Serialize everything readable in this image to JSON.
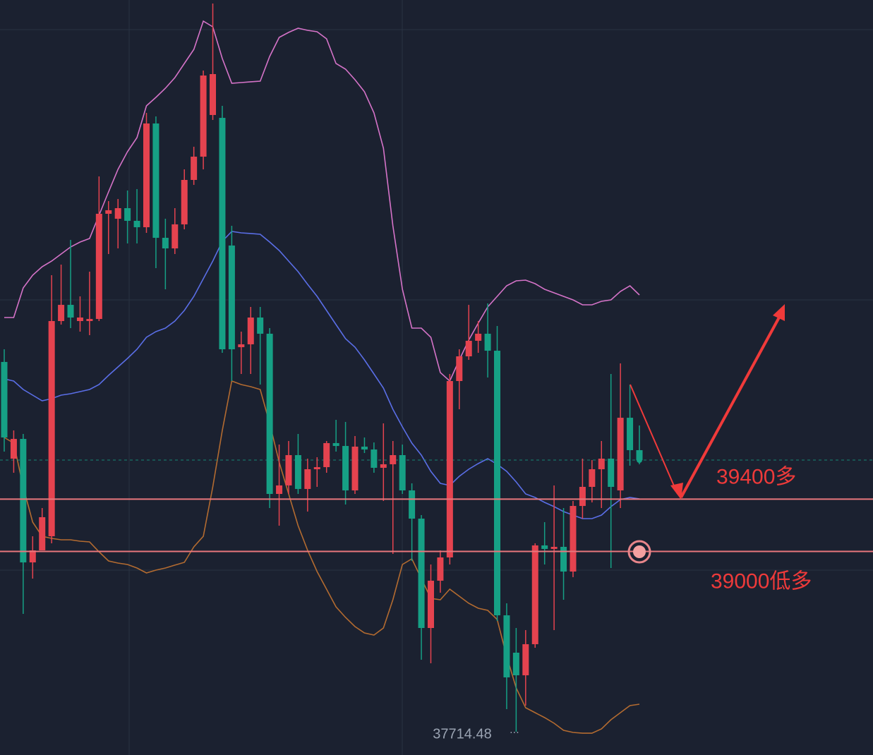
{
  "chart_data": {
    "type": "candlestick",
    "ylim": [
      37442,
      43220
    ],
    "up_color": "#e5434f",
    "down_color": "#16a085",
    "open": [
      40450,
      39710,
      39861,
      38916,
      39008,
      39116,
      40763,
      40887,
      40763,
      40763,
      40779,
      41584,
      41546,
      41627,
      41530,
      41481,
      42275,
      41400,
      41319,
      41503,
      41843,
      42021,
      42340,
      42318,
      41341,
      40563,
      40585,
      40790,
      40666,
      39440,
      39505,
      39737,
      39478,
      39629,
      39645,
      39829,
      39807,
      39467,
      39802,
      39780,
      39640,
      39667,
      39737,
      39467,
      39251,
      38414,
      38776,
      38954,
      40304,
      40493,
      40612,
      40666,
      40536,
      38511,
      38225,
      38052,
      38290,
      39046,
      39019,
      39035,
      38846,
      39348,
      39494,
      39629,
      39710,
      39467,
      40023,
      39775
    ],
    "high": [
      40547,
      39926,
      39899,
      39116,
      39332,
      41114,
      41195,
      41384,
      40952,
      41141,
      41870,
      41681,
      41697,
      41762,
      41773,
      42356,
      42329,
      41546,
      41627,
      41924,
      42097,
      42680,
      43193,
      42410,
      41492,
      40682,
      40871,
      40871,
      40709,
      39818,
      39845,
      39899,
      39710,
      39721,
      39845,
      40007,
      39991,
      39883,
      39872,
      39834,
      39980,
      39845,
      39818,
      39521,
      39278,
      38900,
      39008,
      40358,
      40547,
      40887,
      40763,
      40898,
      40725,
      38603,
      38414,
      38398,
      39062,
      39224,
      39505,
      39332,
      39386,
      39710,
      39699,
      39845,
      40358,
      40439,
      40277,
      39964
    ],
    "low": [
      39764,
      39602,
      38522,
      38792,
      39008,
      39062,
      40736,
      40709,
      40682,
      40655,
      40763,
      41276,
      41319,
      41357,
      41357,
      41438,
      41168,
      41006,
      41276,
      41465,
      41805,
      41924,
      42302,
      40520,
      40304,
      40358,
      40358,
      40277,
      39332,
      39197,
      39440,
      39440,
      39305,
      39494,
      39602,
      39764,
      39359,
      39440,
      39753,
      39602,
      39386,
      38981,
      39440,
      38927,
      38171,
      38144,
      38684,
      38900,
      40088,
      40466,
      40520,
      40331,
      38468,
      37793,
      37620,
      37820,
      38263,
      38900,
      38398,
      38630,
      38803,
      39251,
      39375,
      39332,
      38873,
      39332,
      39656,
      39667
    ],
    "close": [
      39872,
      39861,
      38916,
      39008,
      39262,
      40763,
      40887,
      40790,
      40790,
      40779,
      41584,
      41611,
      41627,
      41530,
      41481,
      42275,
      41400,
      41319,
      41503,
      41843,
      42021,
      42642,
      42653,
      40547,
      40547,
      40585,
      40790,
      40666,
      39440,
      39505,
      39737,
      39478,
      39629,
      39645,
      39829,
      39807,
      39467,
      39802,
      39780,
      39640,
      39667,
      39737,
      39467,
      39251,
      38414,
      38776,
      38954,
      40304,
      40493,
      40612,
      40666,
      40536,
      38511,
      38036,
      38052,
      38290,
      39046,
      39019,
      39035,
      38846,
      39348,
      39494,
      39629,
      39710,
      39494,
      40023,
      39775,
      39699
    ],
    "bands": [
      {
        "color": "#d573c8",
        "values": [
          40790,
          40790,
          41017,
          41114,
          41179,
          41222,
          41276,
          41330,
          41368,
          41395,
          41573,
          41751,
          41924,
          42059,
          42167,
          42410,
          42475,
          42545,
          42626,
          42734,
          42842,
          43058,
          43015,
          42772,
          42583,
          42588,
          42594,
          42599,
          42788,
          42934,
          42972,
          43004,
          42988,
          42977,
          42923,
          42734,
          42691,
          42610,
          42518,
          42356,
          42086,
          41492,
          41006,
          40709,
          40709,
          40639,
          40369,
          40304,
          40466,
          40617,
          40747,
          40871,
          40952,
          41033,
          41071,
          41076,
          41049,
          41006,
          40979,
          40952,
          40925,
          40887,
          40887,
          40914,
          40925,
          40990,
          41033,
          40963
        ]
      },
      {
        "color": "#5a6ee6",
        "values": [
          40320,
          40304,
          40239,
          40196,
          40153,
          40169,
          40196,
          40207,
          40223,
          40239,
          40277,
          40347,
          40412,
          40477,
          40547,
          40639,
          40682,
          40709,
          40763,
          40844,
          40952,
          41087,
          41222,
          41373,
          41449,
          41438,
          41433,
          41427,
          41368,
          41303,
          41222,
          41141,
          41044,
          40952,
          40844,
          40736,
          40628,
          40563,
          40466,
          40358,
          40250,
          40088,
          39953,
          39829,
          39737,
          39613,
          39521,
          39505,
          39575,
          39629,
          39672,
          39710,
          39667,
          39613,
          39532,
          39440,
          39413,
          39375,
          39343,
          39305,
          39278,
          39251,
          39251,
          39278,
          39343,
          39397,
          39413,
          39402
        ]
      },
      {
        "color": "#b36b30",
        "values": [
          39872,
          39829,
          39494,
          39224,
          39116,
          39100,
          39089,
          39089,
          39078,
          39073,
          38997,
          38927,
          38911,
          38900,
          38873,
          38835,
          38857,
          38873,
          38895,
          38916,
          39035,
          39116,
          39494,
          39926,
          40304,
          40277,
          40261,
          40239,
          39980,
          39683,
          39440,
          39197,
          39008,
          38846,
          38711,
          38576,
          38495,
          38425,
          38376,
          38360,
          38414,
          38630,
          38900,
          38943,
          38792,
          38641,
          38630,
          38711,
          38657,
          38603,
          38565,
          38549,
          38479,
          38198,
          37955,
          37804,
          37766,
          37728,
          37685,
          37631,
          37615,
          37609,
          37609,
          37642,
          37712,
          37766,
          37820,
          37831
        ]
      }
    ],
    "levels": [
      {
        "value": 39400,
        "label": "39400多"
      },
      {
        "value": 39000,
        "label": "39000低多"
      }
    ],
    "low_label": 37714.48
  }
}
